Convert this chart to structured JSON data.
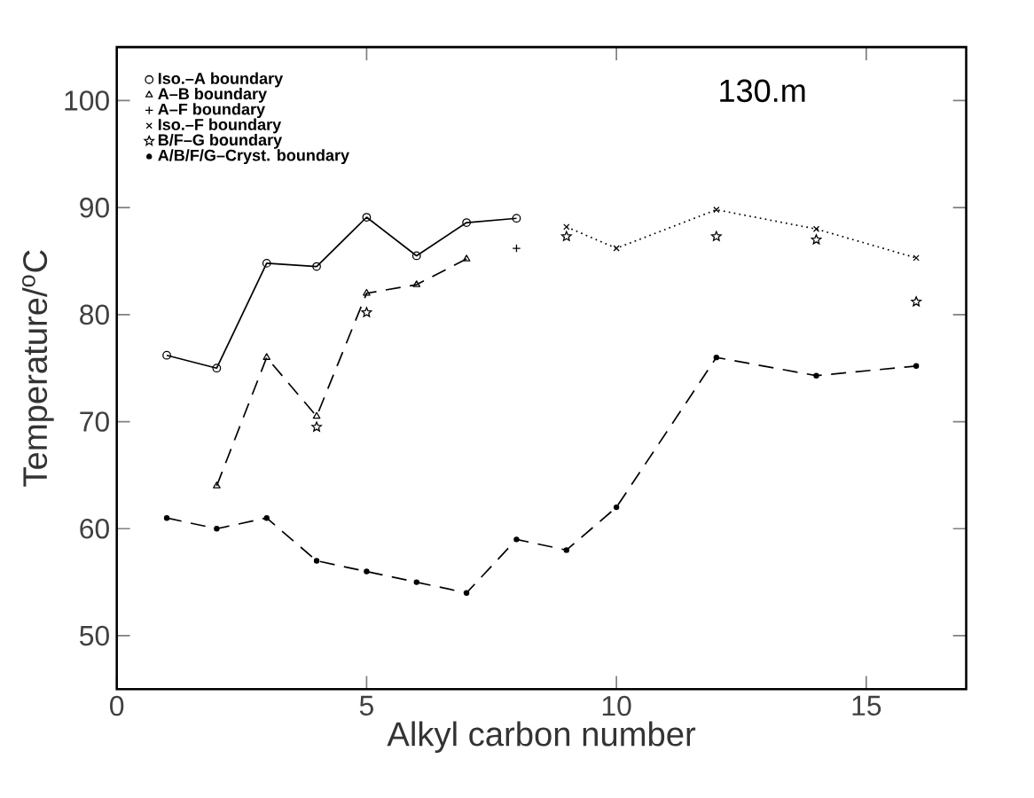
{
  "chart_data": {
    "type": "line",
    "xlabel": "Alkyl carbon number",
    "ylabel": "Temperature/$^{o}$C",
    "xlim": [
      0,
      17
    ],
    "ylim": [
      45,
      105
    ],
    "xticks": [
      0,
      5,
      10,
      15
    ],
    "yticks": [
      50,
      60,
      70,
      80,
      90,
      100
    ],
    "grid": false,
    "legend": "top left",
    "annotations": [
      "130.m"
    ],
    "series": [
      {
        "name": "Iso.–A boundary",
        "color": "#000000",
        "marker": "circle",
        "line_style": "solid",
        "x": [
          1,
          2,
          3,
          4,
          5,
          6,
          7,
          8
        ],
        "values": [
          76.2,
          75,
          84.8,
          84.5,
          89.1,
          85.5,
          88.6,
          89
        ]
      },
      {
        "name": "A–B boundary",
        "color": "#000000",
        "marker": "triangle",
        "line_style": "dashed",
        "x": [
          2,
          3,
          4,
          5,
          6,
          7
        ],
        "values": [
          64,
          76,
          70.5,
          82,
          82.8,
          85.2
        ]
      },
      {
        "name": "A–F boundary",
        "color": "#000000",
        "marker": "plus",
        "type": "scatter",
        "x": [
          8
        ],
        "values": [
          86.2
        ]
      },
      {
        "name": "Iso.–F boundary",
        "color": "#000000",
        "marker": "cross",
        "line_style": "dotted",
        "x": [
          9,
          10,
          12,
          14,
          16
        ],
        "values": [
          88.2,
          86.2,
          89.8,
          88,
          85.3
        ]
      },
      {
        "name": "B/F–G boundary",
        "color": "#000000",
        "marker": "star",
        "type": "scatter",
        "x": [
          4,
          5,
          9,
          12,
          14,
          16
        ],
        "values": [
          69.5,
          80.2,
          87.3,
          87.3,
          87,
          81.2
        ]
      },
      {
        "name": "A/B/F/G–Cryst. boundary",
        "color": "#000000",
        "marker": "dot",
        "line_style": "dashed",
        "x": [
          1,
          2,
          3,
          4,
          5,
          6,
          7,
          8,
          9,
          10,
          12,
          14,
          16
        ],
        "values": [
          61,
          60,
          61,
          57,
          56,
          55,
          54,
          59,
          58,
          62,
          76,
          74.3,
          75.2
        ]
      }
    ]
  }
}
